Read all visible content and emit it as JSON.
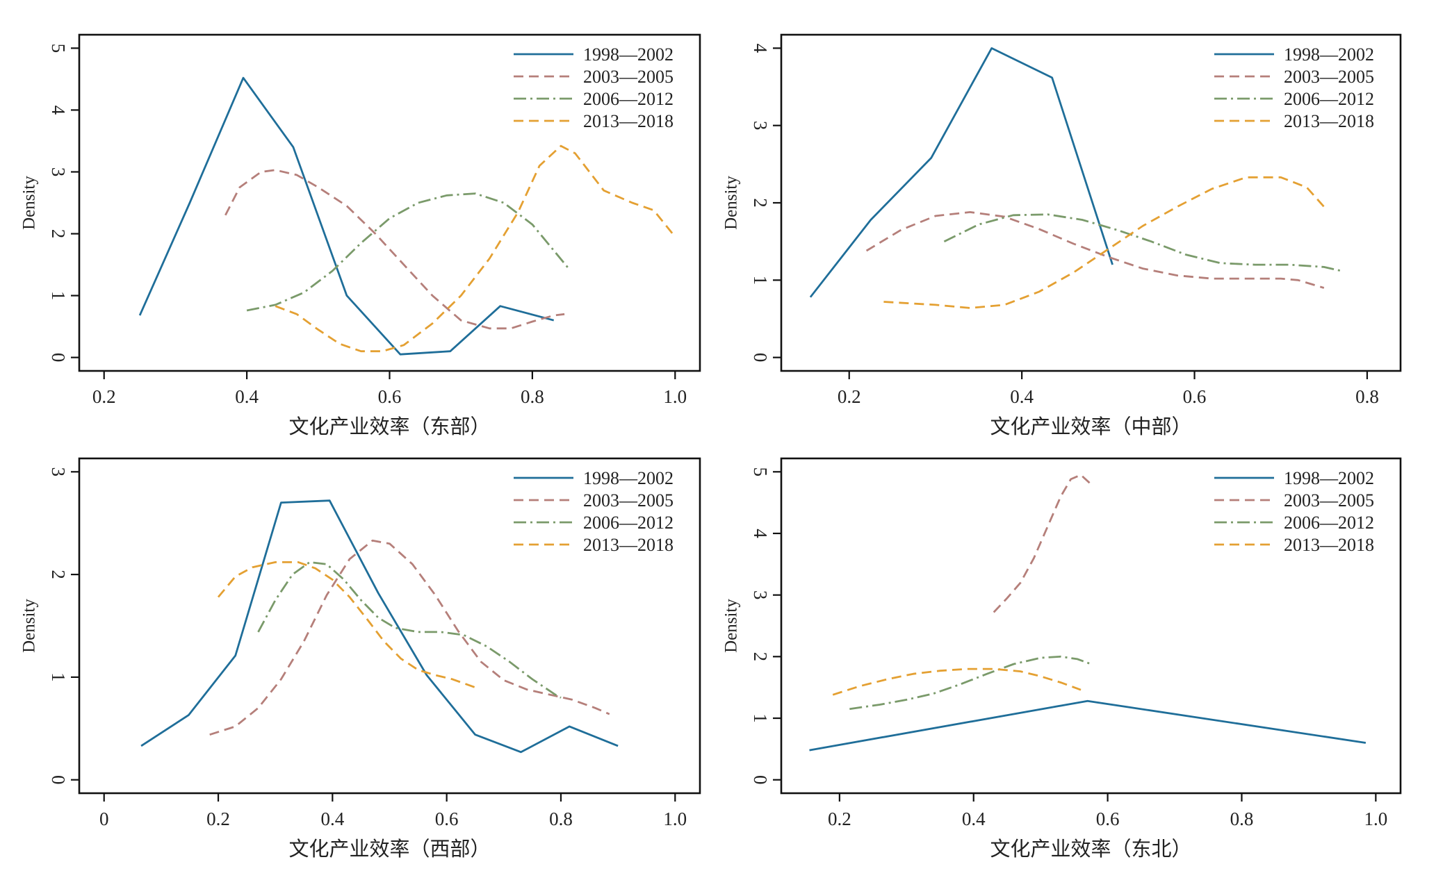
{
  "chart_data": [
    {
      "type": "line",
      "xlabel": "文化产业效率（东部）",
      "ylabel": "Density",
      "xlim": [
        0.2,
        1.0
      ],
      "ylim": [
        0,
        5
      ],
      "xticks": [
        "0.2",
        "0.4",
        "0.6",
        "0.8",
        "1.0"
      ],
      "yticks": [
        "0",
        "1",
        "2",
        "3",
        "4",
        "5"
      ],
      "legend_position": "top-right",
      "series": [
        {
          "name": "1998—2002",
          "color": "#1f6e99",
          "style": "solid",
          "x": [
            0.25,
            0.32,
            0.395,
            0.465,
            0.54,
            0.615,
            0.685,
            0.755,
            0.83
          ],
          "y": [
            0.68,
            2.5,
            4.52,
            3.4,
            1.0,
            0.05,
            0.1,
            0.83,
            0.6
          ]
        },
        {
          "name": "2003—2005",
          "color": "#b57f7a",
          "style": "dashed",
          "x": [
            0.37,
            0.39,
            0.42,
            0.44,
            0.47,
            0.5,
            0.54,
            0.58,
            0.62,
            0.66,
            0.7,
            0.74,
            0.77,
            0.8,
            0.83,
            0.845
          ],
          "y": [
            2.3,
            2.75,
            3.0,
            3.03,
            2.95,
            2.75,
            2.45,
            2.0,
            1.5,
            1.0,
            0.6,
            0.47,
            0.47,
            0.58,
            0.68,
            0.7
          ]
        },
        {
          "name": "2006—2012",
          "color": "#7a9a6a",
          "style": "dashdot",
          "x": [
            0.4,
            0.44,
            0.48,
            0.52,
            0.56,
            0.6,
            0.64,
            0.68,
            0.72,
            0.76,
            0.8,
            0.85
          ],
          "y": [
            0.76,
            0.85,
            1.05,
            1.4,
            1.85,
            2.25,
            2.5,
            2.62,
            2.65,
            2.5,
            2.15,
            1.45
          ]
        },
        {
          "name": "2013—2018",
          "color": "#e4a032",
          "style": "dashed",
          "x": [
            0.44,
            0.47,
            0.5,
            0.53,
            0.56,
            0.59,
            0.62,
            0.66,
            0.7,
            0.74,
            0.78,
            0.81,
            0.84,
            0.86,
            0.9,
            0.94,
            0.97,
            1.0
          ],
          "y": [
            0.83,
            0.7,
            0.45,
            0.22,
            0.1,
            0.1,
            0.2,
            0.55,
            1.0,
            1.6,
            2.35,
            3.1,
            3.42,
            3.3,
            2.7,
            2.5,
            2.38,
            1.95
          ]
        }
      ]
    },
    {
      "type": "line",
      "xlabel": "文化产业效率（中部）",
      "ylabel": "Density",
      "xlim": [
        0.15,
        0.81
      ],
      "ylim": [
        0,
        4
      ],
      "xticks": [
        "0.2",
        "0.4",
        "0.6",
        "0.8"
      ],
      "yticks": [
        "0",
        "1",
        "2",
        "3",
        "4"
      ],
      "legend_position": "top-right",
      "series": [
        {
          "name": "1998—2002",
          "color": "#1f6e99",
          "style": "solid",
          "x": [
            0.155,
            0.225,
            0.295,
            0.365,
            0.435,
            0.505
          ],
          "y": [
            0.78,
            1.78,
            2.58,
            4.0,
            3.62,
            1.2
          ]
        },
        {
          "name": "2003—2005",
          "color": "#b57f7a",
          "style": "dashed",
          "x": [
            0.22,
            0.26,
            0.3,
            0.34,
            0.38,
            0.42,
            0.46,
            0.5,
            0.54,
            0.58,
            0.62,
            0.66,
            0.7,
            0.72,
            0.75
          ],
          "y": [
            1.38,
            1.65,
            1.83,
            1.88,
            1.82,
            1.66,
            1.47,
            1.3,
            1.15,
            1.06,
            1.02,
            1.02,
            1.02,
            1.0,
            0.9
          ]
        },
        {
          "name": "2006—2012",
          "color": "#7a9a6a",
          "style": "dashdot",
          "x": [
            0.31,
            0.35,
            0.39,
            0.43,
            0.47,
            0.51,
            0.55,
            0.59,
            0.63,
            0.67,
            0.71,
            0.75,
            0.77
          ],
          "y": [
            1.5,
            1.72,
            1.84,
            1.85,
            1.78,
            1.65,
            1.5,
            1.33,
            1.22,
            1.2,
            1.2,
            1.17,
            1.12
          ]
        },
        {
          "name": "2013—2018",
          "color": "#e4a032",
          "style": "dashed",
          "x": [
            0.24,
            0.3,
            0.34,
            0.38,
            0.42,
            0.46,
            0.5,
            0.54,
            0.58,
            0.62,
            0.66,
            0.7,
            0.73,
            0.75
          ],
          "y": [
            0.72,
            0.68,
            0.64,
            0.68,
            0.85,
            1.1,
            1.4,
            1.7,
            1.95,
            2.18,
            2.33,
            2.33,
            2.2,
            1.95
          ]
        }
      ]
    },
    {
      "type": "line",
      "xlabel": "文化产业效率（西部）",
      "ylabel": "Density",
      "xlim": [
        0,
        1.0
      ],
      "ylim": [
        0,
        3
      ],
      "xticks": [
        "0",
        "0.2",
        "0.4",
        "0.6",
        "0.8",
        "1.0"
      ],
      "yticks": [
        "0",
        "1",
        "2",
        "3"
      ],
      "legend_position": "top-right",
      "series": [
        {
          "name": "1998—2002",
          "color": "#1f6e99",
          "style": "solid",
          "x": [
            0.065,
            0.148,
            0.23,
            0.31,
            0.395,
            0.48,
            0.565,
            0.65,
            0.73,
            0.815,
            0.9
          ],
          "y": [
            0.33,
            0.63,
            1.21,
            2.7,
            2.72,
            1.82,
            1.02,
            0.44,
            0.27,
            0.52,
            0.33
          ]
        },
        {
          "name": "2003—2005",
          "color": "#b57f7a",
          "style": "dashed",
          "x": [
            0.185,
            0.23,
            0.27,
            0.31,
            0.35,
            0.39,
            0.43,
            0.47,
            0.5,
            0.54,
            0.58,
            0.62,
            0.66,
            0.7,
            0.74,
            0.78,
            0.82,
            0.86,
            0.885
          ],
          "y": [
            0.44,
            0.52,
            0.7,
            0.98,
            1.35,
            1.8,
            2.15,
            2.33,
            2.3,
            2.1,
            1.8,
            1.45,
            1.15,
            0.97,
            0.88,
            0.83,
            0.78,
            0.7,
            0.64
          ]
        },
        {
          "name": "2006—2012",
          "color": "#7a9a6a",
          "style": "dashdot",
          "x": [
            0.27,
            0.3,
            0.33,
            0.36,
            0.39,
            0.42,
            0.45,
            0.48,
            0.51,
            0.55,
            0.59,
            0.63,
            0.67,
            0.71,
            0.75,
            0.79,
            0.8
          ],
          "y": [
            1.44,
            1.75,
            2.0,
            2.12,
            2.1,
            1.95,
            1.75,
            1.58,
            1.48,
            1.44,
            1.44,
            1.41,
            1.3,
            1.15,
            0.98,
            0.83,
            0.8
          ]
        },
        {
          "name": "2013—2018",
          "color": "#e4a032",
          "style": "dashed",
          "x": [
            0.2,
            0.23,
            0.26,
            0.3,
            0.34,
            0.37,
            0.4,
            0.43,
            0.46,
            0.49,
            0.52,
            0.55,
            0.58,
            0.61,
            0.65
          ],
          "y": [
            1.78,
            1.98,
            2.07,
            2.12,
            2.12,
            2.06,
            1.95,
            1.78,
            1.57,
            1.35,
            1.18,
            1.07,
            1.02,
            0.98,
            0.9
          ]
        }
      ]
    },
    {
      "type": "line",
      "xlabel": "文化产业效率（东北）",
      "ylabel": "Density",
      "xlim": [
        0.15,
        1.0
      ],
      "ylim": [
        0,
        5
      ],
      "xticks": [
        "0.2",
        "0.4",
        "0.6",
        "0.8",
        "1.0"
      ],
      "yticks": [
        "0",
        "1",
        "2",
        "3",
        "4",
        "5"
      ],
      "legend_position": "top-right",
      "series": [
        {
          "name": "1998—2002",
          "color": "#1f6e99",
          "style": "solid",
          "x": [
            0.155,
            0.57,
            0.985
          ],
          "y": [
            0.48,
            1.28,
            0.6
          ]
        },
        {
          "name": "2003—2005",
          "color": "#b57f7a",
          "style": "dashed",
          "x": [
            0.43,
            0.45,
            0.47,
            0.49,
            0.51,
            0.53,
            0.545,
            0.56,
            0.575
          ],
          "y": [
            2.72,
            2.95,
            3.2,
            3.6,
            4.1,
            4.6,
            4.88,
            4.95,
            4.8
          ]
        },
        {
          "name": "2006—2012",
          "color": "#7a9a6a",
          "style": "dashdot",
          "x": [
            0.215,
            0.26,
            0.3,
            0.34,
            0.38,
            0.42,
            0.46,
            0.5,
            0.53,
            0.555,
            0.575
          ],
          "y": [
            1.15,
            1.22,
            1.3,
            1.4,
            1.55,
            1.72,
            1.88,
            1.98,
            2.0,
            1.96,
            1.88
          ]
        },
        {
          "name": "2013—2018",
          "color": "#e4a032",
          "style": "dashed",
          "x": [
            0.19,
            0.23,
            0.27,
            0.31,
            0.35,
            0.39,
            0.43,
            0.47,
            0.5,
            0.53,
            0.56
          ],
          "y": [
            1.38,
            1.52,
            1.63,
            1.72,
            1.77,
            1.8,
            1.8,
            1.76,
            1.68,
            1.58,
            1.46
          ]
        }
      ]
    }
  ]
}
